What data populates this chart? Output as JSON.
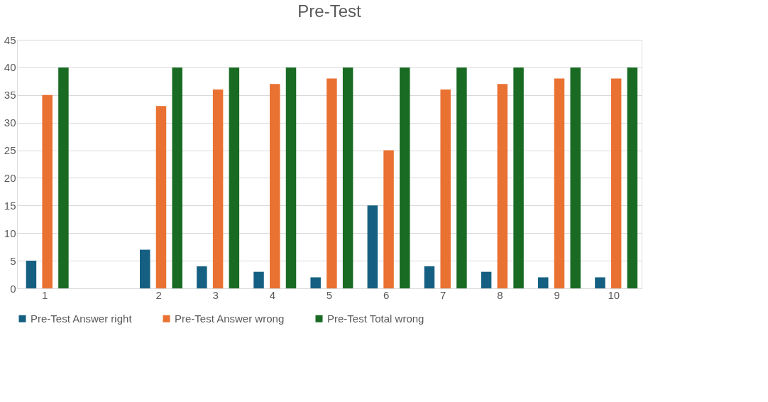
{
  "chart_data": {
    "type": "bar",
    "title": "Pre-Test",
    "categories": [
      "1",
      null,
      "2",
      "3",
      "4",
      "5",
      "6",
      "7",
      "8",
      "9",
      "10"
    ],
    "series": [
      {
        "name": "Pre-Test Answer right",
        "color": "#156082",
        "values": [
          5,
          null,
          7,
          4,
          3,
          2,
          15,
          4,
          3,
          2,
          2
        ]
      },
      {
        "name": "Pre-Test Answer wrong",
        "color": "#e97132",
        "values": [
          35,
          null,
          33,
          36,
          37,
          38,
          25,
          36,
          37,
          38,
          38
        ]
      },
      {
        "name": "Pre-Test Total  wrong",
        "color": "#196b24",
        "values": [
          40,
          null,
          40,
          40,
          40,
          40,
          40,
          40,
          40,
          40,
          40
        ]
      }
    ],
    "ylim": [
      0,
      45
    ],
    "yticks": [
      0,
      5,
      10,
      15,
      20,
      25,
      30,
      35,
      40,
      45
    ],
    "grid": "y",
    "legend": "bottom"
  }
}
